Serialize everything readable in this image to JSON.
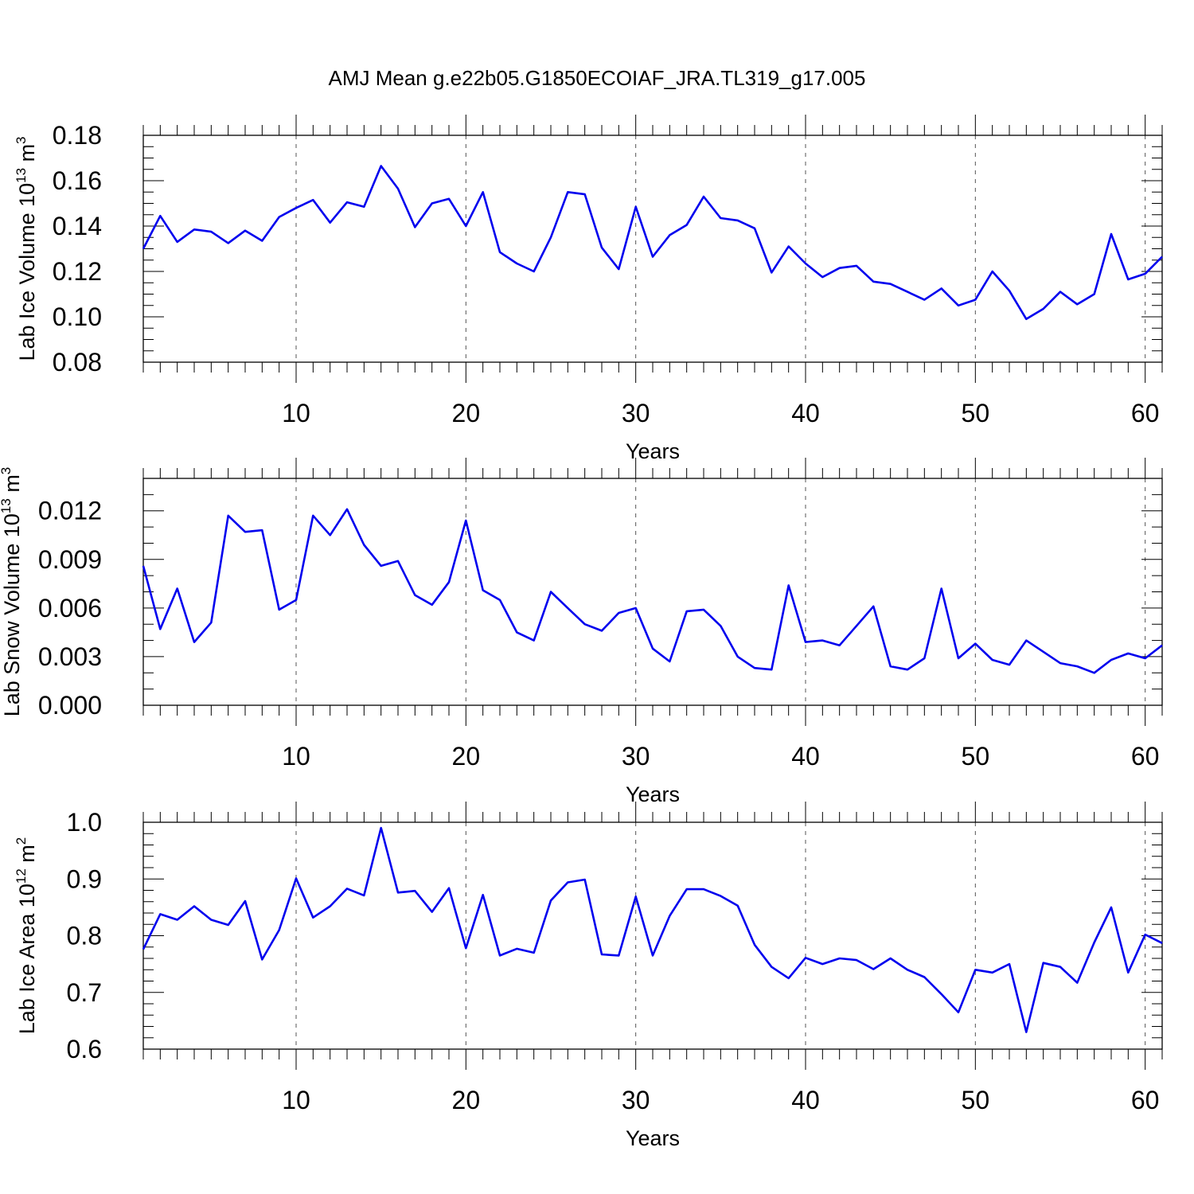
{
  "title": "AMJ Mean g.e22b05.G1850ECOIAF_JRA.TL319_g17.005",
  "line_color": "#0000ee",
  "chart_data": [
    {
      "type": "line",
      "name": "ice_volume",
      "ylabel": {
        "prefix": "Lab Ice Volume 10",
        "sup1": "13",
        "mid": " m",
        "sup2": "3"
      },
      "xlabel": "Years",
      "xlim": [
        1,
        61
      ],
      "ylim": [
        0.08,
        0.18
      ],
      "xticks": [
        10,
        20,
        30,
        40,
        50,
        60
      ],
      "xticklabels": [
        "10",
        "20",
        "30",
        "40",
        "50",
        "60"
      ],
      "yticks": [
        0.08,
        0.1,
        0.12,
        0.14,
        0.16,
        0.18
      ],
      "yticklabels": [
        "0.08",
        "0.10",
        "0.12",
        "0.14",
        "0.16",
        "0.18"
      ],
      "grid": "x-dashed",
      "x": [
        1,
        2,
        3,
        4,
        5,
        6,
        7,
        8,
        9,
        10,
        11,
        12,
        13,
        14,
        15,
        16,
        17,
        18,
        19,
        20,
        21,
        22,
        23,
        24,
        25,
        26,
        27,
        28,
        29,
        30,
        31,
        32,
        33,
        34,
        35,
        36,
        37,
        38,
        39,
        40,
        41,
        42,
        43,
        44,
        45,
        46,
        47,
        48,
        49,
        50,
        51,
        52,
        53,
        54,
        55,
        56,
        57,
        58,
        59,
        60,
        61
      ],
      "values": [
        0.13,
        0.1445,
        0.133,
        0.1385,
        0.1375,
        0.1325,
        0.138,
        0.1335,
        0.144,
        0.148,
        0.1515,
        0.1415,
        0.1505,
        0.1485,
        0.1665,
        0.1565,
        0.1395,
        0.15,
        0.152,
        0.14,
        0.155,
        0.1285,
        0.1235,
        0.12,
        0.135,
        0.155,
        0.154,
        0.1305,
        0.121,
        0.1485,
        0.1265,
        0.136,
        0.1405,
        0.153,
        0.1435,
        0.1425,
        0.139,
        0.1195,
        0.131,
        0.1235,
        0.1175,
        0.1215,
        0.1225,
        0.1155,
        0.1145,
        0.111,
        0.1075,
        0.1125,
        0.105,
        0.1075,
        0.12,
        0.1115,
        0.099,
        0.1035,
        0.111,
        0.1055,
        0.11,
        0.1365,
        0.1165,
        0.119,
        0.1265
      ]
    },
    {
      "type": "line",
      "name": "snow_volume",
      "ylabel": {
        "prefix": "Lab Snow Volume 10",
        "sup1": "13",
        "mid": " m",
        "sup2": "3"
      },
      "xlabel": "Years",
      "xlim": [
        1,
        61
      ],
      "ylim": [
        0.0,
        0.014
      ],
      "xticks": [
        10,
        20,
        30,
        40,
        50,
        60
      ],
      "xticklabels": [
        "10",
        "20",
        "30",
        "40",
        "50",
        "60"
      ],
      "yticks": [
        0.0,
        0.003,
        0.006,
        0.009,
        0.012
      ],
      "yticklabels": [
        "0.000",
        "0.003",
        "0.006",
        "0.009",
        "0.012"
      ],
      "grid": "x-dashed",
      "x": [
        1,
        2,
        3,
        4,
        5,
        6,
        7,
        8,
        9,
        10,
        11,
        12,
        13,
        14,
        15,
        16,
        17,
        18,
        19,
        20,
        21,
        22,
        23,
        24,
        25,
        26,
        27,
        28,
        29,
        30,
        31,
        32,
        33,
        34,
        35,
        36,
        37,
        38,
        39,
        40,
        41,
        42,
        43,
        44,
        45,
        46,
        47,
        48,
        49,
        50,
        51,
        52,
        53,
        54,
        55,
        56,
        57,
        58,
        59,
        60,
        61
      ],
      "values": [
        0.0086,
        0.0047,
        0.0072,
        0.0039,
        0.0051,
        0.0117,
        0.0107,
        0.0108,
        0.0059,
        0.0065,
        0.0117,
        0.0105,
        0.0121,
        0.0099,
        0.0086,
        0.0089,
        0.0068,
        0.0062,
        0.0076,
        0.0114,
        0.0071,
        0.0065,
        0.0045,
        0.004,
        0.007,
        0.006,
        0.005,
        0.0046,
        0.0057,
        0.006,
        0.0035,
        0.0027,
        0.0058,
        0.0059,
        0.0049,
        0.003,
        0.0023,
        0.0022,
        0.0074,
        0.0039,
        0.004,
        0.0037,
        0.0049,
        0.0061,
        0.0024,
        0.0022,
        0.0029,
        0.0072,
        0.0029,
        0.0038,
        0.0028,
        0.0025,
        0.004,
        0.0033,
        0.0026,
        0.0024,
        0.002,
        0.0028,
        0.0032,
        0.0029,
        0.0037
      ]
    },
    {
      "type": "line",
      "name": "ice_area",
      "ylabel": {
        "prefix": "Lab Ice Area 10",
        "sup1": "12",
        "mid": " m",
        "sup2": "2"
      },
      "xlabel": "Years",
      "xlim": [
        1,
        61
      ],
      "ylim": [
        0.6,
        1.0
      ],
      "xticks": [
        10,
        20,
        30,
        40,
        50,
        60
      ],
      "xticklabels": [
        "10",
        "20",
        "30",
        "40",
        "50",
        "60"
      ],
      "yticks": [
        0.6,
        0.7,
        0.8,
        0.9,
        1.0
      ],
      "yticklabels": [
        "0.6",
        "0.7",
        "0.8",
        "0.9",
        "1.0"
      ],
      "grid": "x-dashed",
      "x": [
        1,
        2,
        3,
        4,
        5,
        6,
        7,
        8,
        9,
        10,
        11,
        12,
        13,
        14,
        15,
        16,
        17,
        18,
        19,
        20,
        21,
        22,
        23,
        24,
        25,
        26,
        27,
        28,
        29,
        30,
        31,
        32,
        33,
        34,
        35,
        36,
        37,
        38,
        39,
        40,
        41,
        42,
        43,
        44,
        45,
        46,
        47,
        48,
        49,
        50,
        51,
        52,
        53,
        54,
        55,
        56,
        57,
        58,
        59,
        60,
        61
      ],
      "values": [
        0.776,
        0.838,
        0.828,
        0.852,
        0.828,
        0.819,
        0.861,
        0.758,
        0.81,
        0.901,
        0.832,
        0.852,
        0.883,
        0.871,
        0.99,
        0.876,
        0.879,
        0.842,
        0.884,
        0.778,
        0.872,
        0.765,
        0.777,
        0.77,
        0.862,
        0.894,
        0.899,
        0.767,
        0.765,
        0.869,
        0.765,
        0.835,
        0.882,
        0.882,
        0.87,
        0.853,
        0.784,
        0.745,
        0.725,
        0.761,
        0.75,
        0.76,
        0.757,
        0.741,
        0.76,
        0.74,
        0.727,
        0.697,
        0.665,
        0.74,
        0.735,
        0.75,
        0.63,
        0.752,
        0.745,
        0.717,
        0.788,
        0.85,
        0.735,
        0.802,
        0.787
      ]
    }
  ]
}
